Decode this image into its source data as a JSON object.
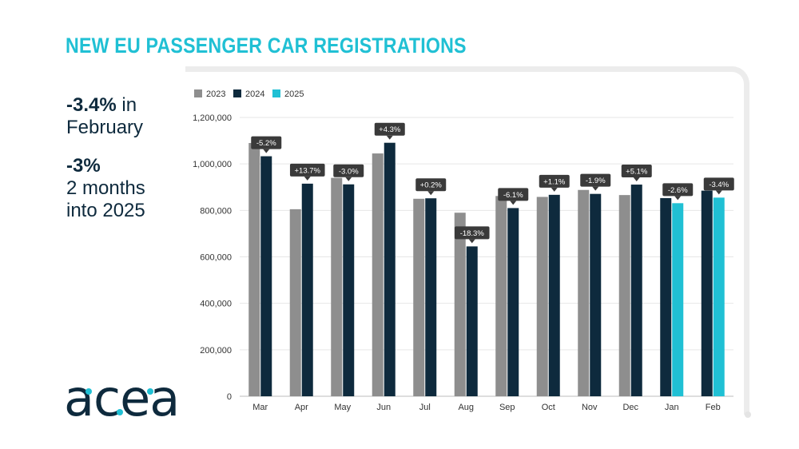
{
  "header": {
    "title": "NEW EU PASSENGER CAR REGISTRATIONS"
  },
  "stats": {
    "stat1_value": "-3.4%",
    "stat1_suffix": " in",
    "stat1_label": "February",
    "stat2_value": "-3%",
    "stat2_label_line1": "2 months",
    "stat2_label_line2": "into 2025"
  },
  "brand": {
    "logo_text": "acea"
  },
  "colors": {
    "title": "#20c0d4",
    "y2023": "#8e8e8e",
    "y2024": "#0e2a3d",
    "y2025": "#20c0d4",
    "callout": "#3a3a3a",
    "grid": "#e6e6e6"
  },
  "chart_data": {
    "type": "bar",
    "categories": [
      "Mar",
      "Apr",
      "May",
      "Jun",
      "Jul",
      "Aug",
      "Sep",
      "Oct",
      "Nov",
      "Dec",
      "Jan",
      "Feb"
    ],
    "series": [
      {
        "name": "2023",
        "values": [
          1090000,
          805000,
          940000,
          1045000,
          850000,
          790000,
          862000,
          858000,
          888000,
          866000,
          null,
          null
        ]
      },
      {
        "name": "2024",
        "values": [
          1033000,
          915000,
          912000,
          1091000,
          852000,
          645000,
          810000,
          867000,
          871000,
          911000,
          853000,
          885000
        ]
      },
      {
        "name": "2025",
        "values": [
          null,
          null,
          null,
          null,
          null,
          null,
          null,
          null,
          null,
          null,
          831000,
          855000
        ]
      }
    ],
    "change_labels": [
      "-5.2%",
      "+13.7%",
      "-3.0%",
      "+4.3%",
      "+0.2%",
      "-18.3%",
      "-6.1%",
      "+1.1%",
      "-1.9%",
      "+5.1%",
      "-2.6%",
      "-3.4%"
    ],
    "yticks": [
      "0",
      "200,000",
      "400,000",
      "600,000",
      "800,000",
      "1,000,000",
      "1,200,000"
    ],
    "ylim": [
      0,
      1200000
    ],
    "legend": [
      "2023",
      "2024",
      "2025"
    ],
    "legend_position": "top-left",
    "grid": true
  }
}
